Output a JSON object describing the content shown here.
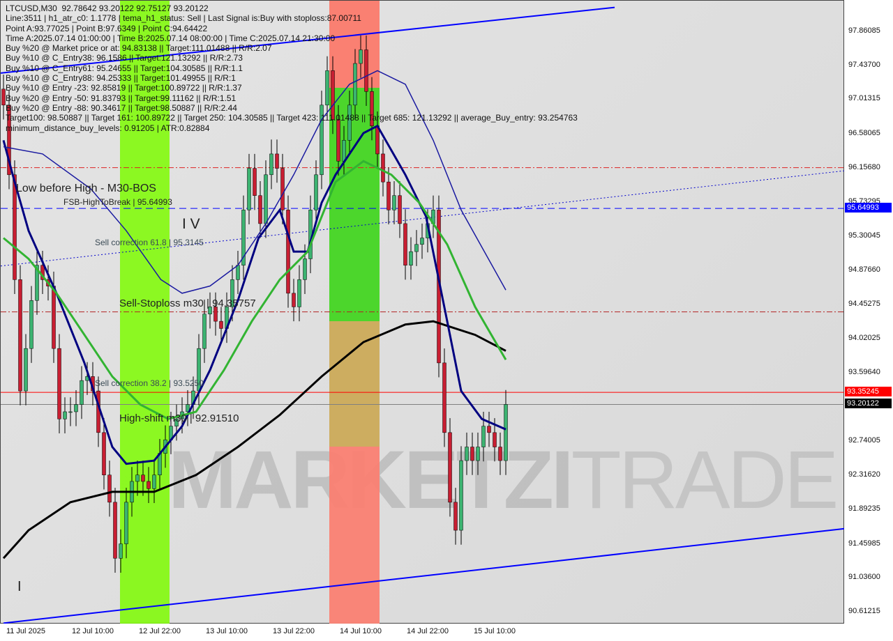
{
  "header": {
    "lines": [
      "LTCUSD,M30  92.78642 93.20122 92.75127 93.20122",
      "Line:3511 | h1_atr_c0: 1.1778 | tema_h1_status: Sell | Last Signal is:Buy with stoploss:87.00711",
      "Point A:93.77025 | Point B:97.6349 | Point C:94.64422",
      "Time A:2025.07.14 01:00:00 | Time B:2025.07.14 08:00:00 | Time C:2025.07.14 21:30:00",
      "Buy %20 @ Market price or at: 94.83138 || Target:111.01488 || R/R:2.07",
      "Buy %10 @ C_Entry38: 96.1586 || Target:121.13292 || R/R:2.73",
      "Buy %10 @ C_Entry61: 95.24655 || Target:104.30585 || R/R:1.1",
      "Buy %10 @ C_Entry88: 94.25333 || Target:101.49955 || R/R:1",
      "Buy %10 @ Entry -23: 92.85819 || Target:100.89722 || R/R:1.37",
      "Buy %20 @ Entry -50: 91.83793 || Target:99.11162 || R/R:1.51",
      "Buy %20 @ Entry -88: 90.34617 || Target:98.50887 || R/R:2.44",
      "Target100: 98.50887 || Target 161: 100.89722 || Target 250: 104.30585 || Target 423: 111.01488 || Target 685: 121.13292 || average_Buy_entry: 93.254763",
      "minimum_distance_buy_levels: 0.91205 | ATR:0.82884"
    ]
  },
  "annotations": {
    "low_before_high": "Low before High - M30-BOS",
    "fsb": "FSB-HighToBreak | 95.64993",
    "wave_iv": "I V",
    "wave_i": "I",
    "sell_corr_618": "Sell correction 61.8 | 95.3145",
    "sell_stoploss": "Sell-Stoploss m30 | 94.35757",
    "sell_corr_382": "Sell correction 38.2 | 93.5250",
    "high_shift": "High-shift m30 | 92.91510"
  },
  "watermark": {
    "bold": "MARKETZI",
    "light": "TRADE"
  },
  "colors": {
    "bull": "#3cb371",
    "bear": "#c81e32",
    "ma_black": "#000000",
    "ma_navy": "#000080",
    "ma_green": "#32b432",
    "channel": "#0000ff",
    "red_level": "#ff0000",
    "zone_green": "#7cfc00",
    "zone_red": "#fa8072"
  },
  "chart_data": {
    "type": "candlestick",
    "symbol": "LTCUSD",
    "timeframe": "M30",
    "ylim": [
      90.4,
      98.25
    ],
    "y_ticks": [
      "97.86085",
      "97.43700",
      "97.01315",
      "96.58065",
      "96.15680",
      "95.73295",
      "95.30045",
      "94.87660",
      "94.45275",
      "94.02025",
      "93.59640",
      "92.74005",
      "92.31620",
      "91.89235",
      "91.45985",
      "91.03600",
      "90.61215"
    ],
    "x_ticks": [
      "11 Jul 2025",
      "12 Jul 10:00",
      "12 Jul 22:00",
      "13 Jul 10:00",
      "13 Jul 22:00",
      "14 Jul 10:00",
      "14 Jul 22:00",
      "15 Jul 10:00"
    ],
    "closes": [
      96.94,
      96.07,
      94.76,
      93.37,
      93.9,
      94.5,
      94.94,
      94.76,
      94.68,
      93.9,
      93.02,
      93.11,
      93.11,
      93.2,
      93.5,
      93.55,
      93.37,
      92.85,
      92.32,
      91.98,
      91.28,
      91.46,
      91.98,
      92.24,
      92.32,
      92.24,
      92.15,
      92.32,
      92.59,
      92.76,
      92.93,
      93.02,
      93.11,
      93.2,
      93.37,
      93.9,
      94.33,
      94.42,
      94.24,
      94.15,
      94.42,
      94.76,
      94.94,
      95.63,
      96.15,
      95.81,
      95.46,
      96.07,
      96.33,
      96.15,
      95.63,
      94.59,
      94.42,
      94.76,
      95.02,
      95.63,
      96.07,
      96.94,
      97.37,
      96.76,
      96.24,
      96.5,
      96.94,
      97.46,
      97.63,
      97.11,
      96.68,
      96.33,
      95.98,
      95.63,
      95.81,
      95.46,
      94.94,
      95.11,
      95.2,
      95.28,
      95.46,
      95.63,
      93.72,
      92.85,
      91.98,
      91.63,
      92.5,
      92.67,
      92.5,
      92.67,
      92.93,
      92.85,
      92.67,
      92.5,
      93.20122
    ],
    "last_price": "93.20122",
    "levels": [
      {
        "label": "95.64993",
        "price": 95.64993,
        "style": "dashed",
        "color": "#0000ff",
        "badge": true
      },
      {
        "label": "93.35245",
        "price": 93.35245,
        "style": "solid",
        "color": "#ff0000",
        "badge": true
      },
      {
        "label": "93.20122",
        "price": 93.20122,
        "style": "solid",
        "color": "#808080",
        "badge": true
      },
      {
        "price": 94.35757,
        "style": "dashdot",
        "color": "#b22222"
      },
      {
        "price": 96.1586,
        "style": "dashdot",
        "color": "#dd2222"
      }
    ],
    "moving_averages": [
      {
        "color": "#000000",
        "points": [
          [
            0,
            91.28
          ],
          [
            4.5,
            91.63
          ],
          [
            12,
            91.98
          ],
          [
            19.5,
            92.11
          ],
          [
            27,
            92.11
          ],
          [
            34.5,
            92.32
          ],
          [
            42,
            92.67
          ],
          [
            49.5,
            93.07
          ],
          [
            57,
            93.55
          ],
          [
            64.5,
            93.98
          ],
          [
            72,
            94.2
          ],
          [
            77,
            94.24
          ],
          [
            84.5,
            94.07
          ],
          [
            90,
            93.87
          ]
        ]
      },
      {
        "color": "#000080",
        "points": [
          [
            0,
            96.5
          ],
          [
            2,
            95.98
          ],
          [
            4.5,
            95.37
          ],
          [
            9.5,
            94.59
          ],
          [
            14.5,
            93.72
          ],
          [
            19.5,
            92.67
          ],
          [
            22,
            92.46
          ],
          [
            27,
            92.5
          ],
          [
            32,
            92.93
          ],
          [
            37,
            93.63
          ],
          [
            42,
            94.5
          ],
          [
            45.7,
            95.28
          ],
          [
            49.5,
            95.63
          ],
          [
            52,
            95.11
          ],
          [
            54.5,
            95.11
          ],
          [
            57,
            95.72
          ],
          [
            59.5,
            96.07
          ],
          [
            64.5,
            96.59
          ],
          [
            67,
            96.68
          ],
          [
            72,
            96.07
          ],
          [
            75.7,
            95.55
          ],
          [
            79.5,
            94.24
          ],
          [
            82,
            93.37
          ],
          [
            85.7,
            93.02
          ],
          [
            90,
            92.89
          ]
        ]
      },
      {
        "color": "#32b432",
        "points": [
          [
            0,
            95.28
          ],
          [
            4.5,
            95.02
          ],
          [
            9.5,
            94.59
          ],
          [
            14.5,
            94.07
          ],
          [
            19.5,
            93.55
          ],
          [
            24.5,
            93.2
          ],
          [
            29.5,
            93.02
          ],
          [
            34.5,
            93.11
          ],
          [
            39.5,
            93.63
          ],
          [
            44.5,
            94.24
          ],
          [
            49.5,
            94.76
          ],
          [
            54.5,
            95.11
          ],
          [
            59.5,
            95.98
          ],
          [
            64.5,
            96.24
          ],
          [
            69.5,
            96.07
          ],
          [
            74.5,
            95.72
          ],
          [
            79.5,
            95.2
          ],
          [
            84.5,
            94.42
          ],
          [
            90,
            93.76
          ]
        ]
      },
      {
        "color": "#1a1aa0",
        "thin": true,
        "points": [
          [
            0,
            96.42
          ],
          [
            7,
            96.33
          ],
          [
            15.7,
            95.89
          ],
          [
            22,
            95.37
          ],
          [
            28.2,
            94.76
          ],
          [
            32,
            94.59
          ],
          [
            37,
            94.68
          ],
          [
            42,
            94.94
          ],
          [
            47,
            95.46
          ],
          [
            52,
            96.07
          ],
          [
            57,
            96.76
          ],
          [
            62,
            97.2
          ],
          [
            67,
            97.37
          ],
          [
            72,
            97.2
          ],
          [
            77,
            96.5
          ],
          [
            82,
            95.63
          ],
          [
            90,
            94.63
          ]
        ]
      }
    ],
    "channels": [
      {
        "color": "#0000ff",
        "style": "solid",
        "from": [
          -0.5,
          97.34
        ],
        "to": [
          109.5,
          98.16
        ]
      },
      {
        "color": "#0000ff",
        "style": "solid",
        "from": [
          0,
          90.47
        ],
        "to": [
          150.7,
          91.65
        ]
      },
      {
        "color": "#0000cc",
        "style": "dotted",
        "from": [
          -0.5,
          94.93
        ],
        "to": [
          150.7,
          96.12
        ]
      }
    ]
  }
}
